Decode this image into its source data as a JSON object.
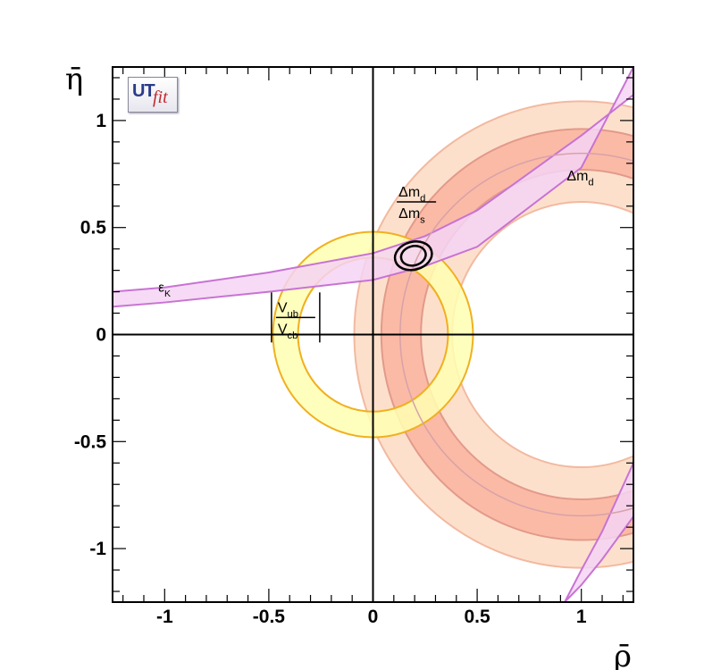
{
  "chart_data": {
    "type": "contour",
    "xlabel": "ρ̄",
    "ylabel": "η̄",
    "xlim": [
      -1.25,
      1.25
    ],
    "ylim": [
      -1.25,
      1.25
    ],
    "xticks": [
      "-1",
      "-0.5",
      "0",
      "0.5",
      "1"
    ],
    "yticks": [
      "-1",
      "-0.5",
      "0",
      "0.5",
      "1"
    ],
    "grid": false,
    "logo": {
      "ut": "UT",
      "fit": "fit"
    },
    "constraints": [
      {
        "name": "|Vub/Vcb|",
        "shape": "annulus",
        "center": [
          0,
          0
        ],
        "inner_radius": 0.36,
        "outer_radius": 0.48,
        "color": "#ffffb2",
        "edge": "#f0b020"
      },
      {
        "name": "Δm_d",
        "shape": "annulus",
        "center": [
          1,
          0
        ],
        "bands": [
          {
            "level": "95%",
            "inner_radius": 0.62,
            "outer_radius": 1.09,
            "color": "#fde0cc",
            "edge": "#f2b9a0"
          },
          {
            "level": "68%",
            "inner_radius": 0.77,
            "outer_radius": 0.96,
            "color": "#fbbaa6",
            "edge": "#e29a8a"
          }
        ]
      },
      {
        "name": "ε_K",
        "shape": "hyperbola-band",
        "color": "#f4d3f4",
        "edge": "#c873d3",
        "curves": [
          {
            "x": [
              -1.25,
              -1.0,
              -0.5,
              0.0,
              0.25,
              0.5,
              1.0,
              1.25
            ],
            "y": [
              0.13,
              0.15,
              0.2,
              0.255,
              0.32,
              0.41,
              0.78,
              1.25
            ]
          },
          {
            "x": [
              -1.25,
              -1.0,
              -0.5,
              0.0,
              0.25,
              0.5,
              1.0,
              1.25
            ],
            "y": [
              0.2,
              0.22,
              0.29,
              0.38,
              0.46,
              0.58,
              0.93,
              1.12
            ]
          }
        ]
      },
      {
        "name": "Δm_d/Δm_s",
        "shape": "annulus",
        "center": [
          1,
          0
        ],
        "inner_radius": 0.87,
        "outer_radius": 0.87
      },
      {
        "name": "fit",
        "shape": "ellipse-contours",
        "center": [
          0.194,
          0.368
        ],
        "contours": [
          {
            "level": "68%",
            "rx": 0.06,
            "ry": 0.045
          },
          {
            "level": "95%",
            "rx": 0.09,
            "ry": 0.065
          }
        ]
      }
    ],
    "annotations": [
      {
        "text": "ε",
        "sub": "K",
        "at": [
          -1.03,
          0.2
        ]
      },
      {
        "text": "Δm",
        "sub": "d",
        "at": [
          0.93,
          0.72
        ]
      },
      {
        "num": "Δm",
        "num_sub": "d",
        "den": "Δm",
        "den_sub": "s",
        "at": [
          0.2,
          0.62
        ]
      },
      {
        "num": "V",
        "num_sub": "ub",
        "den": "V",
        "den_sub": "cb",
        "at": [
          -0.38,
          0.08
        ]
      }
    ]
  }
}
